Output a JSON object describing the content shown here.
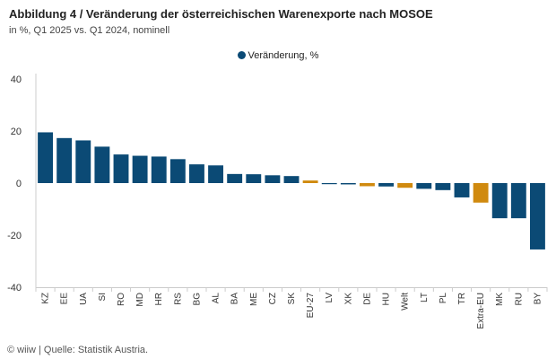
{
  "chart_data": {
    "type": "bar",
    "title": "Abbildung 4 / Veränderung der österreichischen Warenexporte nach MOSOE",
    "subtitle": "in %, Q1 2025 vs. Q1 2024, nominell",
    "categories": [
      "KZ",
      "EE",
      "UA",
      "SI",
      "RO",
      "MD",
      "HR",
      "RS",
      "BG",
      "AL",
      "BA",
      "ME",
      "CZ",
      "SK",
      "EU-27",
      "LV",
      "XK",
      "DE",
      "HU",
      "Welt",
      "LT",
      "PL",
      "TR",
      "Extra-EU",
      "MK",
      "RU",
      "BY"
    ],
    "series": [
      {
        "name": "Veränderung, %",
        "values": [
          19.5,
          17.3,
          16.4,
          14.0,
          11.0,
          10.5,
          10.2,
          9.2,
          7.2,
          6.8,
          3.5,
          3.4,
          3.0,
          2.7,
          1.0,
          -0.4,
          -0.5,
          -1.2,
          -1.3,
          -1.8,
          -2.2,
          -2.7,
          -5.5,
          -7.5,
          -13.5,
          -13.5,
          -25.5
        ]
      }
    ],
    "highlighted": [
      "EU-27",
      "DE",
      "Welt",
      "Extra-EU"
    ],
    "colors": {
      "default": "#0b4a75",
      "highlight": "#d08a0f"
    },
    "ylim": [
      -40,
      40
    ],
    "yticks": [
      40,
      20,
      0,
      -20,
      -40
    ],
    "xlabel": "",
    "ylabel": "",
    "legend_position": "top-center",
    "grid": false
  },
  "footer": {
    "source": "© wiiw | Quelle: Statistik Austria."
  }
}
